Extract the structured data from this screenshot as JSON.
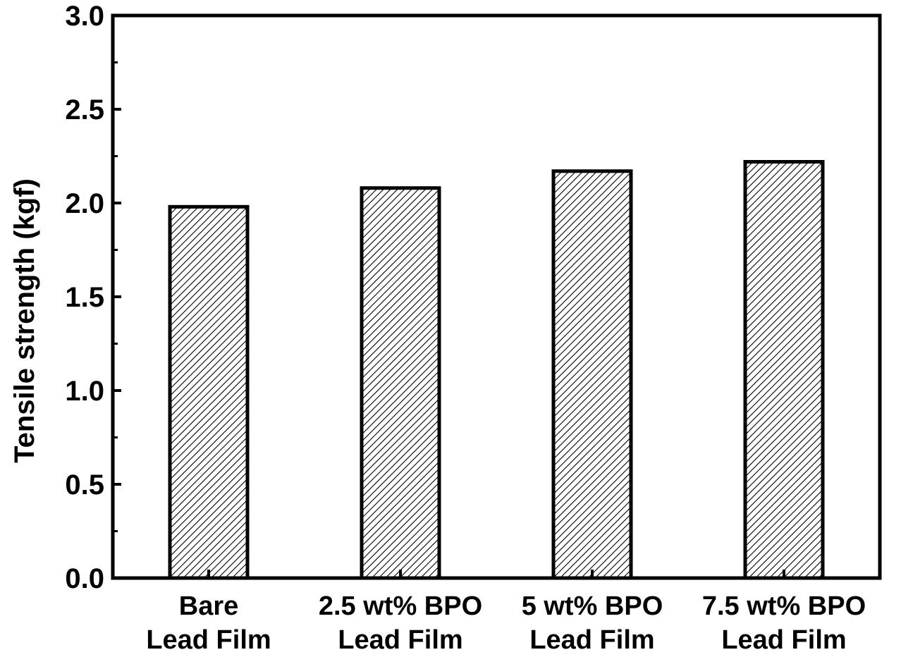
{
  "chart_data": {
    "type": "bar",
    "categories": [
      [
        "Bare",
        "Lead Film"
      ],
      [
        "2.5 wt% BPO",
        "Lead Film"
      ],
      [
        "5 wt% BPO",
        "Lead Film"
      ],
      [
        "7.5 wt% BPO",
        "Lead Film"
      ]
    ],
    "values": [
      1.98,
      2.08,
      2.17,
      2.22
    ],
    "ylabel": "Tensile strength (kgf)",
    "xlabel": "",
    "ylim": [
      0,
      3.0
    ],
    "yticks": [
      "0.0",
      "0.5",
      "1.0",
      "1.5",
      "2.0",
      "2.5",
      "3.0"
    ],
    "grid": false,
    "bar_fill": "hatched",
    "colors": {
      "stroke": "#000000",
      "hatch": "#000000",
      "background": "#ffffff"
    }
  }
}
